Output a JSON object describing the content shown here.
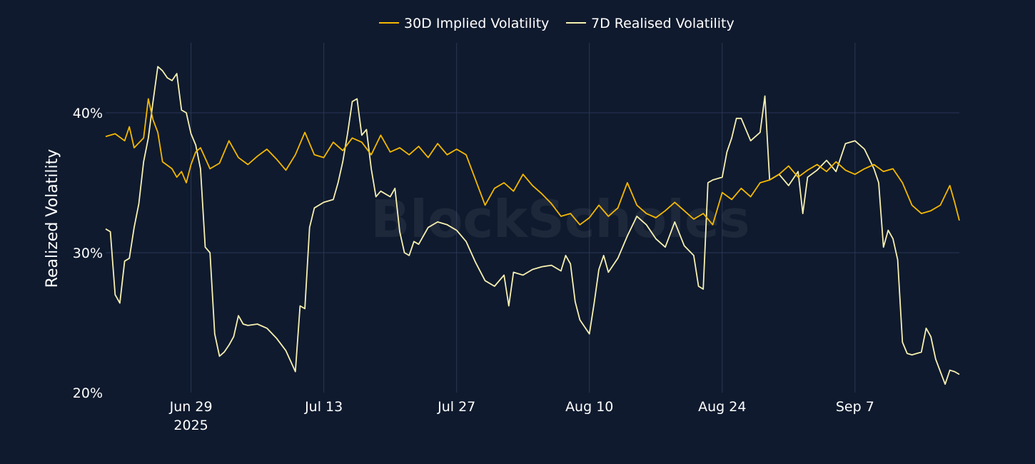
{
  "chart_data": {
    "type": "line",
    "watermark": "BlockScholes",
    "ylabel": "Realized Volatility",
    "ylim": [
      20,
      45
    ],
    "grid": true,
    "legend_position": "top-center",
    "x_range": [
      "2025-06-20",
      "2025-09-18"
    ],
    "y_ticks": [
      {
        "value": 20,
        "label": "20%"
      },
      {
        "value": 30,
        "label": "30%"
      },
      {
        "value": 40,
        "label": "40%"
      }
    ],
    "x_ticks": [
      {
        "date": "2025-06-29",
        "label": "Jun 29",
        "sublabel": "2025"
      },
      {
        "date": "2025-07-13",
        "label": "Jul 13",
        "sublabel": ""
      },
      {
        "date": "2025-07-27",
        "label": "Jul 27",
        "sublabel": ""
      },
      {
        "date": "2025-08-10",
        "label": "Aug 10",
        "sublabel": ""
      },
      {
        "date": "2025-08-24",
        "label": "Aug 24",
        "sublabel": ""
      },
      {
        "date": "2025-09-07",
        "label": "Sep 7",
        "sublabel": ""
      }
    ],
    "series": [
      {
        "name": "30D Implied Volatility",
        "color": "#f5b800",
        "points": [
          [
            "2025-06-20",
            38.3
          ],
          [
            "2025-06-21",
            38.5
          ],
          [
            "2025-06-22",
            38.0
          ],
          [
            "2025-06-22T12",
            39.0
          ],
          [
            "2025-06-23",
            37.5
          ],
          [
            "2025-06-24",
            38.2
          ],
          [
            "2025-06-24T12",
            41.0
          ],
          [
            "2025-06-25",
            39.5
          ],
          [
            "2025-06-25T12",
            38.6
          ],
          [
            "2025-06-26",
            36.5
          ],
          [
            "2025-06-27",
            36.0
          ],
          [
            "2025-06-27T12",
            35.4
          ],
          [
            "2025-06-28",
            35.8
          ],
          [
            "2025-06-28T12",
            35.0
          ],
          [
            "2025-06-29",
            36.3
          ],
          [
            "2025-06-29T12",
            37.2
          ],
          [
            "2025-06-30",
            37.5
          ],
          [
            "2025-07-01",
            36.0
          ],
          [
            "2025-07-02",
            36.4
          ],
          [
            "2025-07-03",
            38.0
          ],
          [
            "2025-07-04",
            36.8
          ],
          [
            "2025-07-05",
            36.3
          ],
          [
            "2025-07-06",
            36.9
          ],
          [
            "2025-07-07",
            37.4
          ],
          [
            "2025-07-08",
            36.7
          ],
          [
            "2025-07-09",
            35.9
          ],
          [
            "2025-07-10",
            37.0
          ],
          [
            "2025-07-11",
            38.6
          ],
          [
            "2025-07-12",
            37.0
          ],
          [
            "2025-07-13",
            36.8
          ],
          [
            "2025-07-14",
            37.9
          ],
          [
            "2025-07-15",
            37.3
          ],
          [
            "2025-07-16",
            38.2
          ],
          [
            "2025-07-17",
            37.9
          ],
          [
            "2025-07-18",
            37.0
          ],
          [
            "2025-07-19",
            38.4
          ],
          [
            "2025-07-20",
            37.2
          ],
          [
            "2025-07-21",
            37.5
          ],
          [
            "2025-07-22",
            37.0
          ],
          [
            "2025-07-23",
            37.6
          ],
          [
            "2025-07-24",
            36.8
          ],
          [
            "2025-07-25",
            37.8
          ],
          [
            "2025-07-26",
            37.0
          ],
          [
            "2025-07-27",
            37.4
          ],
          [
            "2025-07-28",
            37.0
          ],
          [
            "2025-07-29",
            35.2
          ],
          [
            "2025-07-30",
            33.4
          ],
          [
            "2025-07-31",
            34.6
          ],
          [
            "2025-08-01",
            35.0
          ],
          [
            "2025-08-02",
            34.4
          ],
          [
            "2025-08-03",
            35.6
          ],
          [
            "2025-08-04",
            34.8
          ],
          [
            "2025-08-05",
            34.2
          ],
          [
            "2025-08-06",
            33.5
          ],
          [
            "2025-08-07",
            32.6
          ],
          [
            "2025-08-08",
            32.8
          ],
          [
            "2025-08-09",
            32.0
          ],
          [
            "2025-08-10",
            32.5
          ],
          [
            "2025-08-11",
            33.4
          ],
          [
            "2025-08-12",
            32.6
          ],
          [
            "2025-08-13",
            33.2
          ],
          [
            "2025-08-14",
            35.0
          ],
          [
            "2025-08-15",
            33.4
          ],
          [
            "2025-08-16",
            32.8
          ],
          [
            "2025-08-17",
            32.5
          ],
          [
            "2025-08-18",
            33.0
          ],
          [
            "2025-08-19",
            33.6
          ],
          [
            "2025-08-20",
            33.0
          ],
          [
            "2025-08-21",
            32.4
          ],
          [
            "2025-08-22",
            32.8
          ],
          [
            "2025-08-23",
            32.0
          ],
          [
            "2025-08-24",
            34.3
          ],
          [
            "2025-08-25",
            33.8
          ],
          [
            "2025-08-26",
            34.6
          ],
          [
            "2025-08-27",
            34.0
          ],
          [
            "2025-08-28",
            35.0
          ],
          [
            "2025-08-29",
            35.2
          ],
          [
            "2025-08-30",
            35.6
          ],
          [
            "2025-08-31",
            36.2
          ],
          [
            "2025-09-01",
            35.4
          ],
          [
            "2025-09-02",
            35.9
          ],
          [
            "2025-09-03",
            36.3
          ],
          [
            "2025-09-04",
            35.8
          ],
          [
            "2025-09-05",
            36.5
          ],
          [
            "2025-09-06",
            35.9
          ],
          [
            "2025-09-07",
            35.6
          ],
          [
            "2025-09-08",
            36.0
          ],
          [
            "2025-09-09",
            36.3
          ],
          [
            "2025-09-10",
            35.8
          ],
          [
            "2025-09-11",
            36.0
          ],
          [
            "2025-09-12",
            35.0
          ],
          [
            "2025-09-13",
            33.4
          ],
          [
            "2025-09-14",
            32.8
          ],
          [
            "2025-09-15",
            33.0
          ],
          [
            "2025-09-16",
            33.4
          ],
          [
            "2025-09-17",
            34.8
          ],
          [
            "2025-09-17T12",
            33.6
          ],
          [
            "2025-09-18",
            32.3
          ]
        ]
      },
      {
        "name": "7D Realised Volatility",
        "color": "#f7f0b0",
        "points": [
          [
            "2025-06-20",
            31.7
          ],
          [
            "2025-06-20T12",
            31.5
          ],
          [
            "2025-06-21",
            27.0
          ],
          [
            "2025-06-21T12",
            26.4
          ],
          [
            "2025-06-22",
            29.4
          ],
          [
            "2025-06-22T12",
            29.6
          ],
          [
            "2025-06-23",
            31.8
          ],
          [
            "2025-06-23T12",
            33.5
          ],
          [
            "2025-06-24",
            36.5
          ],
          [
            "2025-06-24T12",
            38.2
          ],
          [
            "2025-06-25",
            40.8
          ],
          [
            "2025-06-25T12",
            43.3
          ],
          [
            "2025-06-26",
            43.0
          ],
          [
            "2025-06-26T12",
            42.5
          ],
          [
            "2025-06-27",
            42.3
          ],
          [
            "2025-06-27T12",
            42.8
          ],
          [
            "2025-06-28",
            40.2
          ],
          [
            "2025-06-28T12",
            40.0
          ],
          [
            "2025-06-29",
            38.5
          ],
          [
            "2025-06-29T12",
            37.7
          ],
          [
            "2025-06-30",
            36.0
          ],
          [
            "2025-06-30T12",
            30.4
          ],
          [
            "2025-07-01",
            30.0
          ],
          [
            "2025-07-01T12",
            24.2
          ],
          [
            "2025-07-02",
            22.6
          ],
          [
            "2025-07-02T12",
            22.9
          ],
          [
            "2025-07-03",
            23.4
          ],
          [
            "2025-07-03T12",
            24.0
          ],
          [
            "2025-07-04",
            25.5
          ],
          [
            "2025-07-04T12",
            24.9
          ],
          [
            "2025-07-05",
            24.8
          ],
          [
            "2025-07-06",
            24.9
          ],
          [
            "2025-07-07",
            24.6
          ],
          [
            "2025-07-08",
            23.9
          ],
          [
            "2025-07-09",
            23.0
          ],
          [
            "2025-07-10",
            21.5
          ],
          [
            "2025-07-10T12",
            26.2
          ],
          [
            "2025-07-11",
            26.0
          ],
          [
            "2025-07-11T12",
            31.8
          ],
          [
            "2025-07-12",
            33.2
          ],
          [
            "2025-07-13",
            33.6
          ],
          [
            "2025-07-14",
            33.8
          ],
          [
            "2025-07-14T12",
            35.0
          ],
          [
            "2025-07-15",
            36.5
          ],
          [
            "2025-07-15T12",
            38.5
          ],
          [
            "2025-07-16",
            40.8
          ],
          [
            "2025-07-16T12",
            41.0
          ],
          [
            "2025-07-17",
            38.4
          ],
          [
            "2025-07-17T12",
            38.8
          ],
          [
            "2025-07-18",
            36.0
          ],
          [
            "2025-07-18T12",
            34.0
          ],
          [
            "2025-07-19",
            34.4
          ],
          [
            "2025-07-20",
            34.0
          ],
          [
            "2025-07-20T12",
            34.6
          ],
          [
            "2025-07-21",
            31.5
          ],
          [
            "2025-07-21T12",
            30.0
          ],
          [
            "2025-07-22",
            29.8
          ],
          [
            "2025-07-22T12",
            30.8
          ],
          [
            "2025-07-23",
            30.6
          ],
          [
            "2025-07-24",
            31.8
          ],
          [
            "2025-07-25",
            32.2
          ],
          [
            "2025-07-26",
            32.0
          ],
          [
            "2025-07-27",
            31.6
          ],
          [
            "2025-07-28",
            30.8
          ],
          [
            "2025-07-29",
            29.3
          ],
          [
            "2025-07-30",
            28.0
          ],
          [
            "2025-07-31",
            27.6
          ],
          [
            "2025-08-01",
            28.4
          ],
          [
            "2025-08-01T12",
            26.2
          ],
          [
            "2025-08-02",
            28.6
          ],
          [
            "2025-08-03",
            28.4
          ],
          [
            "2025-08-04",
            28.8
          ],
          [
            "2025-08-05",
            29.0
          ],
          [
            "2025-08-06",
            29.1
          ],
          [
            "2025-08-07",
            28.7
          ],
          [
            "2025-08-07T12",
            29.8
          ],
          [
            "2025-08-08",
            29.2
          ],
          [
            "2025-08-08T12",
            26.5
          ],
          [
            "2025-08-09",
            25.2
          ],
          [
            "2025-08-10",
            24.2
          ],
          [
            "2025-08-10T12",
            26.4
          ],
          [
            "2025-08-11",
            28.8
          ],
          [
            "2025-08-11T12",
            29.8
          ],
          [
            "2025-08-12",
            28.6
          ],
          [
            "2025-08-13",
            29.6
          ],
          [
            "2025-08-14",
            31.2
          ],
          [
            "2025-08-15",
            32.6
          ],
          [
            "2025-08-16",
            32.0
          ],
          [
            "2025-08-17",
            31.0
          ],
          [
            "2025-08-18",
            30.4
          ],
          [
            "2025-08-19",
            32.2
          ],
          [
            "2025-08-20",
            30.5
          ],
          [
            "2025-08-21",
            29.8
          ],
          [
            "2025-08-21T12",
            27.6
          ],
          [
            "2025-08-22",
            27.4
          ],
          [
            "2025-08-22T12",
            35.0
          ],
          [
            "2025-08-23",
            35.2
          ],
          [
            "2025-08-24",
            35.4
          ],
          [
            "2025-08-24T12",
            37.2
          ],
          [
            "2025-08-25",
            38.2
          ],
          [
            "2025-08-25T12",
            39.6
          ],
          [
            "2025-08-26",
            39.6
          ],
          [
            "2025-08-27",
            38.0
          ],
          [
            "2025-08-28",
            38.6
          ],
          [
            "2025-08-28T12",
            41.2
          ],
          [
            "2025-08-29",
            35.2
          ],
          [
            "2025-08-30",
            35.6
          ],
          [
            "2025-08-31",
            34.8
          ],
          [
            "2025-09-01",
            35.8
          ],
          [
            "2025-09-01T12",
            32.8
          ],
          [
            "2025-09-02",
            35.4
          ],
          [
            "2025-09-03",
            35.9
          ],
          [
            "2025-09-04",
            36.6
          ],
          [
            "2025-09-05",
            35.8
          ],
          [
            "2025-09-06",
            37.8
          ],
          [
            "2025-09-07",
            38.0
          ],
          [
            "2025-09-08",
            37.4
          ],
          [
            "2025-09-09",
            36.0
          ],
          [
            "2025-09-09T12",
            35.0
          ],
          [
            "2025-09-10",
            30.4
          ],
          [
            "2025-09-10T12",
            31.6
          ],
          [
            "2025-09-11",
            31.0
          ],
          [
            "2025-09-11T12",
            29.5
          ],
          [
            "2025-09-12",
            23.6
          ],
          [
            "2025-09-12T12",
            22.8
          ],
          [
            "2025-09-13",
            22.7
          ],
          [
            "2025-09-14",
            22.9
          ],
          [
            "2025-09-14T12",
            24.6
          ],
          [
            "2025-09-15",
            24.0
          ],
          [
            "2025-09-15T12",
            22.4
          ],
          [
            "2025-09-16",
            21.5
          ],
          [
            "2025-09-16T12",
            20.6
          ],
          [
            "2025-09-17",
            21.6
          ],
          [
            "2025-09-17T12",
            21.5
          ],
          [
            "2025-09-18",
            21.3
          ]
        ]
      }
    ]
  }
}
